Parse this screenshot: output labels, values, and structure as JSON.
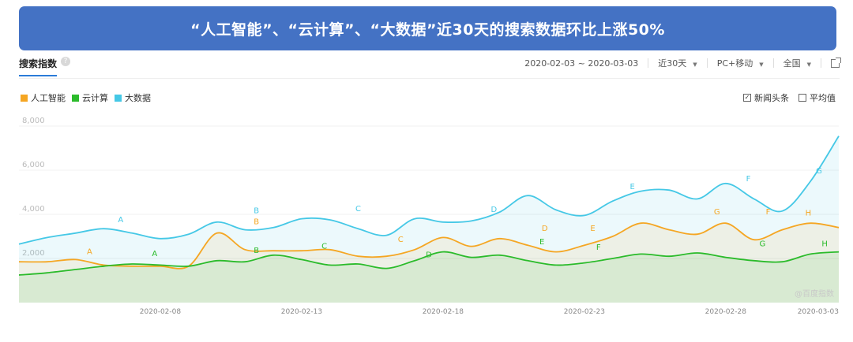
{
  "banner": {
    "title": "“人工智能”、“云计算”、“大数据”近30天的搜索数据环比上涨50%"
  },
  "toolbar": {
    "title": "搜索指数",
    "help": "?",
    "date_range": "2020-02-03 ~ 2020-03-03",
    "period": "近30天",
    "device": "PC+移动",
    "region": "全国"
  },
  "options": {
    "news_label": "新闻头条",
    "news_checked": "✓",
    "avg_label": "平均值"
  },
  "colors": {
    "ai": "#f5a623",
    "cloud": "#2bbb2b",
    "bigdata": "#45c8e6",
    "accent": "#4472c4"
  },
  "chart_data": {
    "type": "line",
    "y_ticks": [
      "2,000",
      "4,000",
      "6,000",
      "8,000"
    ],
    "ylim": [
      0,
      8000
    ],
    "x_tick_labels": [
      "2020-02-08",
      "2020-02-13",
      "2020-02-18",
      "2020-02-23",
      "2020-02-28",
      "2020-03-03"
    ],
    "x_tick_days": [
      5,
      10,
      15,
      20,
      25,
      29
    ],
    "x_start": "2020-02-03",
    "x_end": "2020-03-03",
    "grid": true,
    "legend_position": "top-left",
    "watermark": "@百度指数",
    "series": [
      {
        "name": "人工智能",
        "color": "#f5a623",
        "values": [
          1850,
          1850,
          1950,
          1700,
          1650,
          1650,
          1650,
          3150,
          2400,
          2350,
          2350,
          2400,
          2100,
          2100,
          2400,
          2950,
          2550,
          2900,
          2600,
          2300,
          2600,
          3000,
          3600,
          3300,
          3100,
          3600,
          2850,
          3300,
          3600,
          3400
        ],
        "markers": [
          {
            "label": "A",
            "day": 2.5,
            "value": 2200
          },
          {
            "label": "B",
            "day": 8.4,
            "value": 3550
          },
          {
            "label": "C",
            "day": 13.5,
            "value": 2750
          },
          {
            "label": "D",
            "day": 18.6,
            "value": 3250
          },
          {
            "label": "E",
            "day": 20.3,
            "value": 3250
          },
          {
            "label": "F",
            "day": 26.5,
            "value": 4000
          },
          {
            "label": "G",
            "day": 29.8,
            "value": 4000
          },
          {
            "label": "H",
            "day": 33.7,
            "value": 3950
          }
        ]
      },
      {
        "name": "云计算",
        "color": "#2bbb2b",
        "values": [
          1250,
          1350,
          1500,
          1650,
          1750,
          1700,
          1650,
          1900,
          1850,
          2150,
          1950,
          1700,
          1750,
          1550,
          1900,
          2300,
          2050,
          2150,
          1900,
          1700,
          1800,
          2000,
          2200,
          2100,
          2250,
          2050,
          1900,
          1850,
          2200,
          2300
        ],
        "markers": [
          {
            "label": "A",
            "day": 4.8,
            "value": 2100
          },
          {
            "label": "B",
            "day": 8.4,
            "value": 2250
          },
          {
            "label": "C",
            "day": 10.8,
            "value": 2450
          },
          {
            "label": "D",
            "day": 14.5,
            "value": 2050
          },
          {
            "label": "E",
            "day": 18.5,
            "value": 2650
          },
          {
            "label": "F",
            "day": 20.5,
            "value": 2400
          },
          {
            "label": "G",
            "day": 26.3,
            "value": 2550
          },
          {
            "label": "H",
            "day": 28.5,
            "value": 2550
          }
        ]
      },
      {
        "name": "大数据",
        "color": "#45c8e6",
        "values": [
          2650,
          2950,
          3150,
          3350,
          3150,
          2900,
          3100,
          3650,
          3300,
          3400,
          3800,
          3750,
          3350,
          3050,
          3800,
          3650,
          3700,
          4100,
          4850,
          4200,
          3950,
          4600,
          5050,
          5100,
          4700,
          5400,
          4700,
          4150,
          5500,
          7550
        ],
        "markers": [
          {
            "label": "A",
            "day": 3.6,
            "value": 3650
          },
          {
            "label": "B",
            "day": 8.4,
            "value": 4050
          },
          {
            "label": "C",
            "day": 12.0,
            "value": 4150
          },
          {
            "label": "D",
            "day": 16.8,
            "value": 4100
          },
          {
            "label": "E",
            "day": 21.7,
            "value": 5150
          },
          {
            "label": "F",
            "day": 25.8,
            "value": 5500
          },
          {
            "label": "G",
            "day": 28.3,
            "value": 5850
          }
        ]
      }
    ]
  }
}
